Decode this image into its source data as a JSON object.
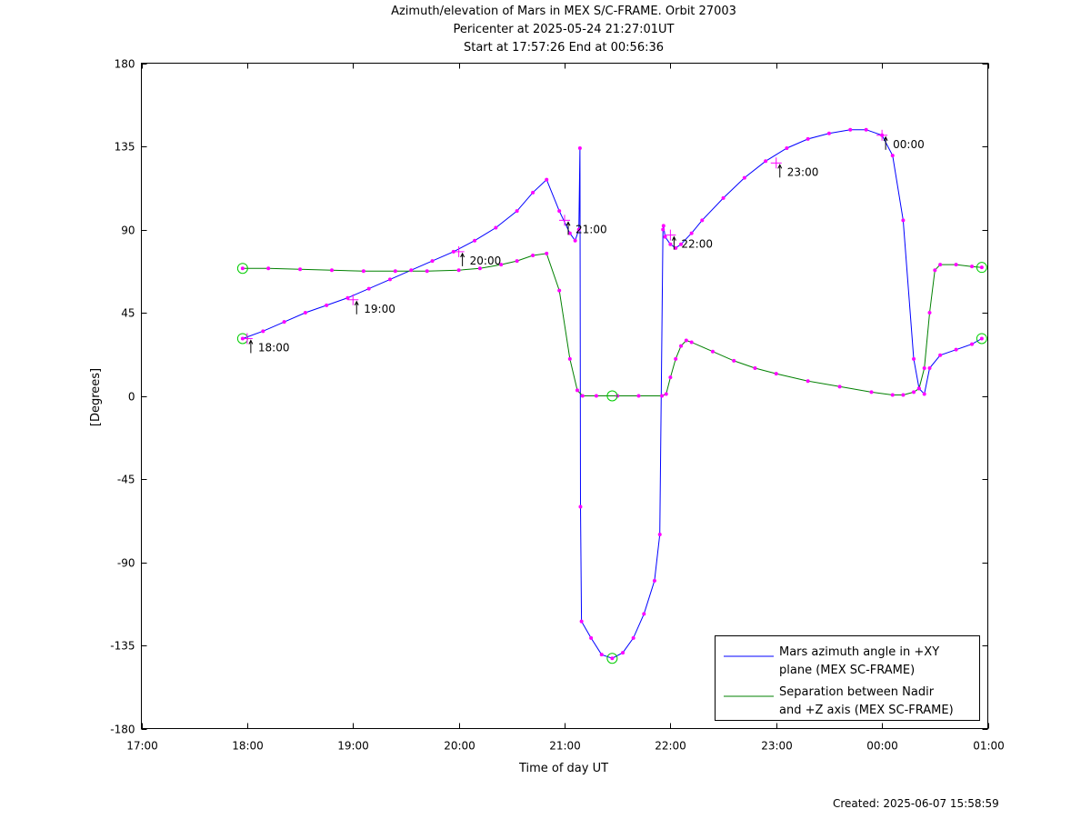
{
  "chart_data": {
    "type": "line",
    "title": "Azimuth/elevation of Mars in MEX S/C-FRAME.  Orbit 27003",
    "subtitle_1": "Pericenter at 2025-05-24 21:27:01UT",
    "subtitle_2": "Start at 17:57:26 End at 00:56:36",
    "xlabel": "Time of day UT",
    "ylabel": "[Degrees]",
    "ylim": [
      -180,
      180
    ],
    "xlim": [
      "17:00",
      "01:00"
    ],
    "x_ticks": [
      "17:00",
      "18:00",
      "19:00",
      "20:00",
      "21:00",
      "22:00",
      "23:00",
      "00:00",
      "01:00"
    ],
    "y_ticks": [
      "180",
      "135",
      "90",
      "45",
      "0",
      "-45",
      "-90",
      "-135",
      "-180"
    ],
    "grid": false,
    "legend_position": "lower-right",
    "hour_annotations": [
      {
        "label": "18:00",
        "x": 18.0,
        "y": 31
      },
      {
        "label": "19:00",
        "x": 19.0,
        "y": 52
      },
      {
        "label": "20:00",
        "x": 20.0,
        "y": 78
      },
      {
        "label": "21:00",
        "x": 21.0,
        "y": 95
      },
      {
        "label": "22:00",
        "x": 22.0,
        "y": 87
      },
      {
        "label": "23:00",
        "x": 23.0,
        "y": 126
      },
      {
        "label": "00:00",
        "x": 24.0,
        "y": 141
      }
    ],
    "series": [
      {
        "name": "Mars azimuth angle in +XY plane (MEX SC-FRAME)",
        "legend_line_1": "Mars azimuth angle in +XY",
        "legend_line_2": "plane (MEX SC-FRAME)",
        "color": "#0000ff",
        "x": [
          17.957,
          18.15,
          18.35,
          18.55,
          18.75,
          18.95,
          19.15,
          19.35,
          19.55,
          19.75,
          19.95,
          20.15,
          20.35,
          20.55,
          20.7,
          20.83,
          20.95,
          21.05,
          21.1,
          21.135,
          21.145,
          21.15,
          21.16,
          21.25,
          21.35,
          21.45,
          21.55,
          21.65,
          21.75,
          21.85,
          21.9,
          21.93,
          21.935,
          21.95,
          22.0,
          22.05,
          22.1,
          22.2,
          22.3,
          22.5,
          22.7,
          22.9,
          23.1,
          23.3,
          23.5,
          23.7,
          23.85,
          24.0,
          24.1,
          24.2,
          24.3,
          24.35,
          24.4,
          24.45,
          24.55,
          24.7,
          24.85,
          24.943
        ],
        "y": [
          31,
          35,
          40,
          45,
          49,
          53,
          58,
          63,
          68,
          73,
          78,
          84,
          91,
          100,
          110,
          117,
          100,
          88,
          84,
          90,
          134,
          -60,
          -122,
          -131,
          -140,
          -142,
          -139,
          -131,
          -118,
          -100,
          -75,
          90,
          92,
          86,
          82,
          80,
          82,
          88,
          95,
          107,
          118,
          127,
          134,
          139,
          142,
          144,
          144,
          141,
          130,
          95,
          20,
          4,
          1,
          15,
          22,
          25,
          28,
          31
        ]
      },
      {
        "name": "Separation between Nadir and +Z axis (MEX SC-FRAME)",
        "legend_line_1": "Separation between Nadir",
        "legend_line_2": "and +Z axis (MEX SC-FRAME)",
        "color": "#008000",
        "x": [
          17.957,
          18.2,
          18.5,
          18.8,
          19.1,
          19.4,
          19.7,
          20.0,
          20.2,
          20.4,
          20.55,
          20.7,
          20.83,
          20.95,
          21.05,
          21.12,
          21.17,
          21.3,
          21.5,
          21.7,
          21.92,
          21.96,
          22.0,
          22.05,
          22.1,
          22.15,
          22.2,
          22.4,
          22.6,
          22.8,
          23.0,
          23.3,
          23.6,
          23.9,
          24.1,
          24.2,
          24.3,
          24.35,
          24.4,
          24.45,
          24.5,
          24.55,
          24.7,
          24.85,
          24.943
        ],
        "y": [
          69,
          69,
          68.5,
          68,
          67.5,
          67.5,
          67.5,
          68,
          69,
          71,
          73,
          76,
          77,
          57,
          20,
          3,
          0,
          0,
          0,
          0,
          0,
          1,
          10,
          20,
          27,
          30,
          29,
          24,
          19,
          15,
          12,
          8,
          5,
          2,
          0.5,
          0.5,
          2,
          4,
          15,
          45,
          68,
          71,
          71,
          70,
          69.5
        ]
      }
    ],
    "markers": {
      "dot_color": "#ff00ff",
      "circle_color": "#00cc00",
      "plus_color": "#ff00ff"
    }
  },
  "footer": {
    "created": "Created: 2025-06-07 15:58:59"
  }
}
